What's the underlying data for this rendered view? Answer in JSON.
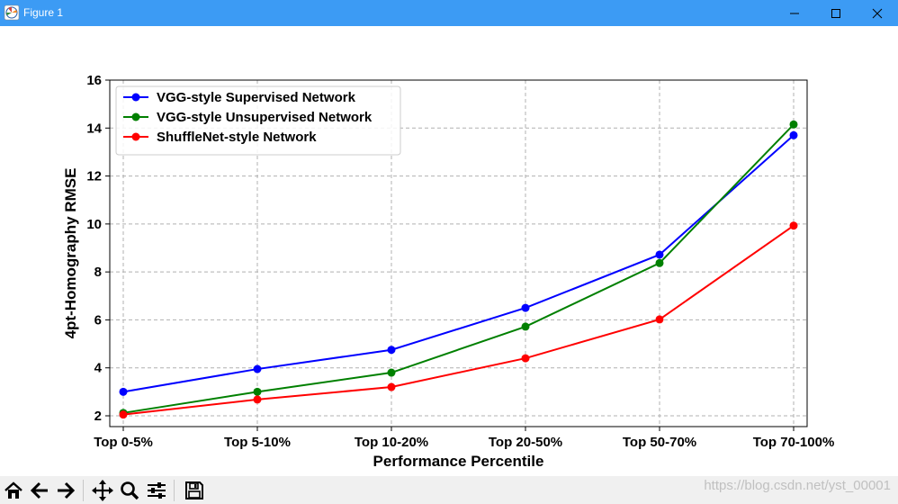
{
  "window": {
    "title": "Figure 1",
    "titlebar_color": "#3c9bf4"
  },
  "toolbar": {
    "icons": [
      "home-icon",
      "back-arrow-icon",
      "forward-arrow-icon",
      "pan-icon",
      "zoom-icon",
      "configure-subplots-icon",
      "save-icon"
    ]
  },
  "watermark": "https://blog.csdn.net/yst_00001",
  "chart_data": {
    "type": "line",
    "title": "",
    "xlabel": "Performance Percentile",
    "ylabel": "4pt-Homography RMSE",
    "categories": [
      "Top 0-5%",
      "Top 5-10%",
      "Top 10-20%",
      "Top 20-50%",
      "Top 50-70%",
      "Top 70-100%"
    ],
    "ylim": [
      1.55,
      16
    ],
    "yticks": [
      2,
      4,
      6,
      8,
      10,
      12,
      14,
      16
    ],
    "grid": true,
    "grid_style": "dashed",
    "legend_position": "upper-left",
    "series": [
      {
        "name": "VGG-style Supervised Network",
        "color": "#0000ff",
        "values": [
          3.0,
          3.95,
          4.75,
          6.5,
          8.72,
          13.7
        ]
      },
      {
        "name": "VGG-style Unsupervised Network",
        "color": "#008000",
        "values": [
          2.12,
          3.0,
          3.8,
          5.72,
          8.37,
          14.15
        ]
      },
      {
        "name": "ShuffleNet-style Network",
        "color": "#ff0000",
        "values": [
          2.05,
          2.68,
          3.2,
          4.4,
          6.02,
          9.93
        ]
      }
    ]
  }
}
